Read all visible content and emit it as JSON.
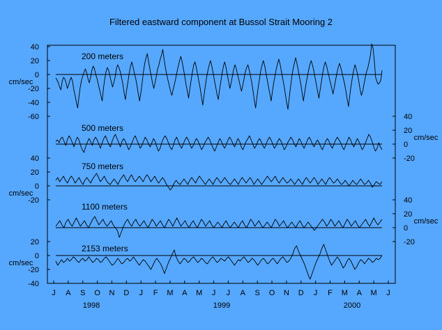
{
  "chart_data": {
    "type": "line",
    "title": "Filtered eastward component at Bussol Strait Mooring 2",
    "x_tick_labels": [
      "J",
      "A",
      "S",
      "O",
      "N",
      "D",
      "J",
      "F",
      "M",
      "A",
      "M",
      "J",
      "J",
      "A",
      "S",
      "O",
      "N",
      "D",
      "J",
      "F",
      "M",
      "A",
      "M",
      "J"
    ],
    "year_labels": [
      "1998",
      "1999",
      "2000"
    ],
    "unit_label": "cm/sec",
    "series": [
      {
        "name": "200 meters",
        "axis_side": "left",
        "ticks": [
          40,
          20,
          0,
          -20,
          -40,
          -60
        ],
        "ylim": [
          -60,
          40
        ],
        "values": [
          -5,
          -8,
          -12,
          -18,
          -22,
          -10,
          -4,
          -6,
          -12,
          -20,
          -15,
          -8,
          -4,
          -10,
          -22,
          -30,
          -40,
          -48,
          -32,
          -18,
          -8,
          -2,
          4,
          8,
          2,
          -6,
          -12,
          -4,
          6,
          12,
          8,
          0,
          -6,
          -14,
          -22,
          -30,
          -38,
          -20,
          -6,
          4,
          10,
          6,
          -2,
          -10,
          -18,
          -12,
          -4,
          8,
          14,
          10,
          4,
          -4,
          -14,
          -26,
          -36,
          -22,
          -10,
          2,
          12,
          18,
          10,
          2,
          -6,
          -16,
          -28,
          -38,
          -26,
          -12,
          4,
          16,
          24,
          30,
          18,
          8,
          -2,
          -12,
          -20,
          -12,
          -2,
          8,
          14,
          22,
          28,
          36,
          22,
          10,
          0,
          -8,
          -16,
          -24,
          -30,
          -22,
          -14,
          -6,
          4,
          12,
          20,
          26,
          18,
          8,
          -2,
          -14,
          -24,
          -34,
          -20,
          -8,
          4,
          14,
          18,
          10,
          0,
          -10,
          -20,
          -32,
          -44,
          -30,
          -16,
          -4,
          6,
          14,
          20,
          12,
          2,
          -8,
          -18,
          -28,
          -36,
          -22,
          -10,
          2,
          12,
          18,
          10,
          0,
          -10,
          -20,
          -12,
          -2,
          8,
          14,
          8,
          0,
          -8,
          -16,
          -24,
          -16,
          -6,
          4,
          10,
          14,
          6,
          -2,
          -12,
          -24,
          -38,
          -48,
          -32,
          -18,
          -6,
          6,
          14,
          20,
          12,
          2,
          -8,
          -18,
          -28,
          -38,
          -24,
          -12,
          -2,
          8,
          16,
          22,
          14,
          4,
          -6,
          -16,
          -28,
          -40,
          -50,
          -34,
          -18,
          -4,
          8,
          16,
          24,
          16,
          6,
          -4,
          -14,
          -26,
          -38,
          -26,
          -14,
          -4,
          6,
          14,
          20,
          14,
          6,
          -4,
          -14,
          -24,
          -34,
          -22,
          -10,
          2,
          12,
          18,
          12,
          4,
          -4,
          -12,
          -20,
          -28,
          -18,
          -8,
          2,
          10,
          16,
          10,
          2,
          -6,
          -14,
          -24,
          -36,
          -46,
          -30,
          -16,
          -4,
          6,
          14,
          8,
          0,
          -10,
          -22,
          -30,
          -24,
          -14,
          -4,
          4,
          10,
          18,
          28,
          44,
          38,
          20,
          -4,
          -10,
          -14,
          -12,
          -8,
          6
        ]
      },
      {
        "name": "500 meters",
        "axis_side": "right",
        "ticks": [
          40,
          20,
          0,
          -20
        ],
        "ylim": [
          -40,
          40
        ],
        "values": [
          4,
          6,
          2,
          8,
          10,
          4,
          -2,
          6,
          12,
          8,
          2,
          -4,
          4,
          10,
          6,
          -2,
          -8,
          -12,
          -4,
          2,
          8,
          4,
          -2,
          6,
          10,
          6,
          0,
          -6,
          2,
          8,
          12,
          6,
          0,
          -4,
          4,
          10,
          14,
          8,
          2,
          -4,
          4,
          8,
          4,
          -2,
          -8,
          -4,
          2,
          8,
          12,
          6,
          0,
          -6,
          -2,
          4,
          10,
          6,
          0,
          -4,
          2,
          8,
          4,
          -4,
          -10,
          -6,
          2,
          8,
          12,
          8,
          2,
          -4,
          -8,
          -2,
          6,
          10,
          4,
          -2,
          -6,
          0,
          6,
          10,
          6,
          0,
          -6,
          -2,
          4,
          8,
          4,
          -2,
          -8,
          -4,
          2,
          6,
          10,
          6,
          0,
          -6,
          -10,
          -4,
          2,
          8,
          4,
          -2,
          -6,
          0,
          6,
          10,
          6,
          0,
          -4,
          2,
          8,
          4,
          -4,
          -8,
          -2,
          4,
          8,
          12,
          6,
          0,
          -6,
          -2,
          4,
          8,
          4,
          -2,
          -6,
          0,
          6,
          10,
          6,
          0,
          -6,
          -2,
          4,
          8,
          4,
          -2,
          -8,
          -4,
          2,
          6,
          10,
          6,
          0,
          -4,
          2,
          8,
          4,
          -2,
          -6,
          0,
          6,
          10,
          6,
          0,
          -4,
          2,
          6,
          2,
          -4,
          -8,
          -2,
          4,
          8,
          4,
          -2,
          -6,
          0,
          6,
          10,
          6,
          2,
          -4,
          -8,
          -2,
          4,
          10,
          6,
          0,
          -4,
          2,
          8,
          4,
          -2,
          -8,
          -4,
          2,
          8,
          14,
          10,
          4,
          -4,
          -10,
          -6,
          2,
          -4,
          -8
        ]
      },
      {
        "name": "750 meters",
        "axis_side": "left",
        "ticks": [
          40,
          20,
          0,
          -20
        ],
        "ylim": [
          -40,
          40
        ],
        "values": [
          8,
          12,
          6,
          10,
          14,
          8,
          4,
          10,
          14,
          10,
          4,
          8,
          12,
          6,
          2,
          8,
          12,
          8,
          4,
          10,
          14,
          18,
          12,
          6,
          10,
          14,
          8,
          4,
          2,
          6,
          10,
          6,
          2,
          8,
          12,
          16,
          10,
          6,
          12,
          16,
          10,
          6,
          10,
          14,
          10,
          6,
          12,
          16,
          12,
          6,
          10,
          14,
          8,
          4,
          8,
          12,
          8,
          2,
          -2,
          -6,
          -2,
          4,
          8,
          4,
          2,
          6,
          10,
          6,
          2,
          8,
          12,
          8,
          4,
          10,
          14,
          10,
          6,
          2,
          6,
          10,
          6,
          2,
          8,
          12,
          8,
          4,
          8,
          12,
          8,
          4,
          2,
          6,
          10,
          6,
          2,
          8,
          12,
          8,
          4,
          8,
          12,
          8,
          2,
          6,
          10,
          6,
          2,
          6,
          10,
          14,
          10,
          6,
          10,
          14,
          8,
          4,
          8,
          12,
          8,
          4,
          6,
          10,
          6,
          2,
          6,
          10,
          6,
          2,
          8,
          12,
          8,
          4,
          8,
          12,
          8,
          2,
          6,
          10,
          6,
          2,
          8,
          12,
          8,
          4,
          6,
          10,
          6,
          2,
          4,
          8,
          4,
          0,
          4,
          8,
          4,
          2,
          6,
          10,
          6,
          2,
          4,
          8,
          4,
          -2,
          2,
          6,
          4,
          2,
          6
        ]
      },
      {
        "name": "1100 meters",
        "axis_side": "right",
        "ticks": [
          40,
          20,
          0,
          -20
        ],
        "ylim": [
          -40,
          40
        ],
        "values": [
          2,
          6,
          10,
          4,
          0,
          8,
          12,
          6,
          2,
          8,
          14,
          8,
          2,
          6,
          10,
          4,
          0,
          6,
          12,
          16,
          10,
          4,
          8,
          12,
          6,
          2,
          6,
          10,
          4,
          0,
          -4,
          -14,
          -6,
          2,
          8,
          12,
          6,
          2,
          8,
          12,
          6,
          2,
          6,
          10,
          4,
          0,
          6,
          12,
          8,
          2,
          6,
          10,
          4,
          0,
          6,
          12,
          8,
          2,
          8,
          14,
          8,
          2,
          6,
          10,
          4,
          0,
          6,
          10,
          4,
          0,
          6,
          12,
          8,
          2,
          6,
          10,
          4,
          0,
          4,
          8,
          4,
          0,
          6,
          10,
          4,
          0,
          4,
          8,
          4,
          0,
          6,
          10,
          4,
          0,
          6,
          12,
          8,
          2,
          6,
          10,
          4,
          0,
          4,
          8,
          4,
          0,
          6,
          12,
          8,
          2,
          6,
          10,
          4,
          0,
          4,
          8,
          4,
          0,
          6,
          10,
          4,
          0,
          4,
          8,
          4,
          0,
          -4,
          0,
          4,
          8,
          12,
          8,
          2,
          6,
          12,
          8,
          2,
          6,
          10,
          4,
          0,
          6,
          12,
          8,
          2,
          6,
          10,
          4,
          0,
          4,
          8,
          12,
          6,
          2,
          8,
          14,
          8,
          4,
          8,
          12
        ]
      },
      {
        "name": "2153 meters",
        "axis_side": "left",
        "ticks": [
          20,
          0,
          -20,
          -40
        ],
        "ylim": [
          -40,
          20
        ],
        "values": [
          -8,
          -14,
          -10,
          -6,
          -10,
          -8,
          -4,
          -8,
          -6,
          -2,
          -4,
          -8,
          -10,
          -6,
          -4,
          -8,
          -6,
          -2,
          -6,
          -10,
          -8,
          -4,
          -6,
          -10,
          -8,
          -4,
          -2,
          -6,
          -10,
          -14,
          -12,
          -8,
          -4,
          -8,
          -12,
          -10,
          -6,
          -4,
          -8,
          -6,
          -2,
          -6,
          -10,
          -14,
          -10,
          -6,
          -8,
          -12,
          -16,
          -20,
          -14,
          -8,
          -4,
          -8,
          -12,
          -18,
          -26,
          -18,
          -10,
          -4,
          2,
          8,
          -2,
          -8,
          -12,
          -8,
          -4,
          -6,
          -10,
          -8,
          -4,
          -2,
          -6,
          -10,
          -8,
          -4,
          -6,
          -10,
          -12,
          -8,
          -4,
          -2,
          -6,
          -10,
          -8,
          -4,
          -6,
          -8,
          -4,
          -2,
          -6,
          -10,
          -14,
          -10,
          -6,
          -8,
          -4,
          -2,
          -6,
          -10,
          -8,
          -4,
          -6,
          -10,
          -14,
          -10,
          -6,
          -4,
          -8,
          -12,
          -10,
          -6,
          -4,
          -8,
          -12,
          -8,
          -4,
          -2,
          -6,
          -10,
          -8,
          -4,
          2,
          10,
          14,
          6,
          0,
          -6,
          -12,
          -20,
          -28,
          -34,
          -26,
          -18,
          -10,
          -4,
          2,
          10,
          16,
          8,
          0,
          -8,
          -14,
          -10,
          -6,
          -2,
          -6,
          -12,
          -18,
          -14,
          -8,
          -4,
          -8,
          -14,
          -20,
          -16,
          -10,
          -6,
          -8,
          -12,
          -8,
          -4,
          -6,
          -10,
          -8,
          -4,
          -6,
          -4,
          0
        ]
      }
    ]
  }
}
